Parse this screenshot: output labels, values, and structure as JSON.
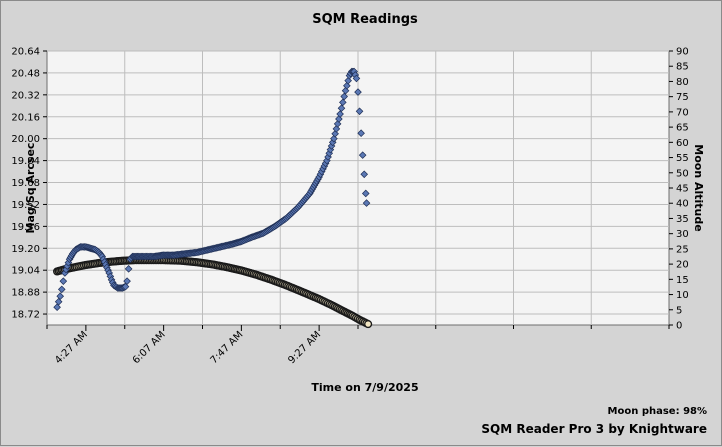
{
  "chart_data": {
    "type": "scatter",
    "title": "SQM Readings",
    "xlabel": "Time on 7/9/2025",
    "ylabel": "Mag/Sq Arcsec",
    "y2label": "Moon Altitude",
    "x_tick_labels": [
      "4:27 AM",
      "6:07 AM",
      "7:47 AM",
      "9:27 AM"
    ],
    "y_ticks": [
      "18.72",
      "18.88",
      "19.04",
      "19.20",
      "19.36",
      "19.52",
      "19.68",
      "19.84",
      "20.00",
      "20.16",
      "20.32",
      "20.48",
      "20.64"
    ],
    "y2_ticks": [
      "0",
      "5",
      "10",
      "15",
      "20",
      "25",
      "30",
      "35",
      "40",
      "45",
      "50",
      "55",
      "60",
      "65",
      "70",
      "75",
      "80",
      "85",
      "90"
    ],
    "ylim": [
      18.64,
      20.64
    ],
    "y2lim": [
      0,
      90
    ],
    "grid": true,
    "series": [
      {
        "axis": "left",
        "marker": "diamond",
        "color": "#5b78b4",
        "points": [
          [
            "03:50",
            18.77
          ],
          [
            "03:52",
            18.81
          ],
          [
            "03:54",
            18.85
          ],
          [
            "03:56",
            18.9
          ],
          [
            "03:58",
            18.96
          ],
          [
            "04:00",
            19.02
          ],
          [
            "04:03",
            19.07
          ],
          [
            "04:06",
            19.12
          ],
          [
            "04:10",
            19.16
          ],
          [
            "04:14",
            19.19
          ],
          [
            "04:20",
            19.21
          ],
          [
            "04:27",
            19.21
          ],
          [
            "04:33",
            19.2
          ],
          [
            "04:39",
            19.19
          ],
          [
            "04:44",
            19.17
          ],
          [
            "04:48",
            19.14
          ],
          [
            "04:51",
            19.1
          ],
          [
            "04:54",
            19.06
          ],
          [
            "04:57",
            19.02
          ],
          [
            "05:00",
            18.97
          ],
          [
            "05:03",
            18.93
          ],
          [
            "05:08",
            18.91
          ],
          [
            "05:14",
            18.91
          ],
          [
            "05:18",
            18.92
          ],
          [
            "05:20",
            18.96
          ],
          [
            "05:22",
            19.05
          ],
          [
            "05:24",
            19.12
          ],
          [
            "05:27",
            19.14
          ],
          [
            "05:35",
            19.14
          ],
          [
            "05:45",
            19.14
          ],
          [
            "05:55",
            19.14
          ],
          [
            "06:07",
            19.15
          ],
          [
            "06:20",
            19.15
          ],
          [
            "06:35",
            19.16
          ],
          [
            "06:50",
            19.17
          ],
          [
            "07:05",
            19.19
          ],
          [
            "07:20",
            19.21
          ],
          [
            "07:35",
            19.23
          ],
          [
            "07:47",
            19.25
          ],
          [
            "08:00",
            19.28
          ],
          [
            "08:15",
            19.31
          ],
          [
            "08:30",
            19.36
          ],
          [
            "08:45",
            19.42
          ],
          [
            "09:00",
            19.5
          ],
          [
            "09:15",
            19.6
          ],
          [
            "09:27",
            19.72
          ],
          [
            "09:37",
            19.84
          ],
          [
            "09:46",
            20.0
          ],
          [
            "09:54",
            20.18
          ],
          [
            "10:01",
            20.35
          ],
          [
            "10:06",
            20.46
          ],
          [
            "10:09",
            20.49
          ],
          [
            "10:12",
            20.49
          ],
          [
            "10:15",
            20.44
          ],
          [
            "10:17",
            20.34
          ],
          [
            "10:19",
            20.2
          ],
          [
            "10:21",
            20.04
          ],
          [
            "10:23",
            19.88
          ],
          [
            "10:25",
            19.74
          ],
          [
            "10:27",
            19.6
          ],
          [
            "10:28",
            19.53
          ]
        ]
      },
      {
        "axis": "right",
        "marker": "circle",
        "color": "#f2e6c2",
        "points": [
          [
            "03:50",
            17.6
          ],
          [
            "04:00",
            18.3
          ],
          [
            "04:15",
            19.1
          ],
          [
            "04:27",
            19.7
          ],
          [
            "04:45",
            20.4
          ],
          [
            "05:00",
            20.8
          ],
          [
            "05:15",
            21.1
          ],
          [
            "05:30",
            21.3
          ],
          [
            "05:45",
            21.3
          ],
          [
            "06:07",
            21.3
          ],
          [
            "06:30",
            21.1
          ],
          [
            "06:50",
            20.6
          ],
          [
            "07:10",
            19.9
          ],
          [
            "07:30",
            18.9
          ],
          [
            "07:47",
            17.9
          ],
          [
            "08:05",
            16.6
          ],
          [
            "08:25",
            14.9
          ],
          [
            "08:45",
            13.0
          ],
          [
            "09:05",
            10.9
          ],
          [
            "09:27",
            8.5
          ],
          [
            "09:45",
            6.3
          ],
          [
            "10:00",
            4.3
          ],
          [
            "10:10",
            3.0
          ],
          [
            "10:19",
            1.7
          ],
          [
            "10:30",
            0.3
          ]
        ]
      }
    ],
    "moon_phase_text": "Moon phase: 98%",
    "brand": "SQM Reader Pro 3 by Knightware"
  }
}
